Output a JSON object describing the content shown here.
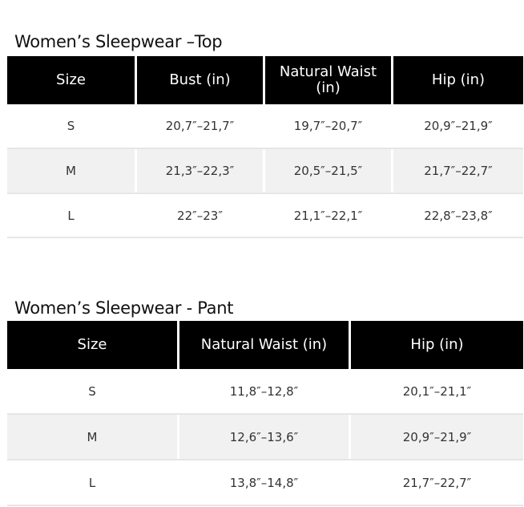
{
  "tables": [
    {
      "title": "Women’s Sleepwear –Top",
      "headers": [
        "Size",
        "Bust (in)",
        "Natural Waist (in)",
        "Hip (in)"
      ],
      "rows": [
        [
          "S",
          "20,7″–21,7″",
          "19,7″–20,7″",
          "20,9″–21,9″"
        ],
        [
          "M",
          "21,3″–22,3″",
          "20,5″–21,5″",
          "21,7″–22,7″"
        ],
        [
          "L",
          "22″–23″",
          "21,1″–22,1″",
          "22,8″–23,8″"
        ]
      ]
    },
    {
      "title": "Women’s Sleepwear - Pant",
      "headers": [
        "Size",
        "Natural Waist (in)",
        "Hip (in)"
      ],
      "rows": [
        [
          "S",
          "11,8″–12,8″",
          "20,1″–21,1″"
        ],
        [
          "M",
          "12,6″–13,6″",
          "20,9″–21,9″"
        ],
        [
          "L",
          "13,8″–14,8″",
          "21,7″–22,7″"
        ]
      ]
    }
  ]
}
